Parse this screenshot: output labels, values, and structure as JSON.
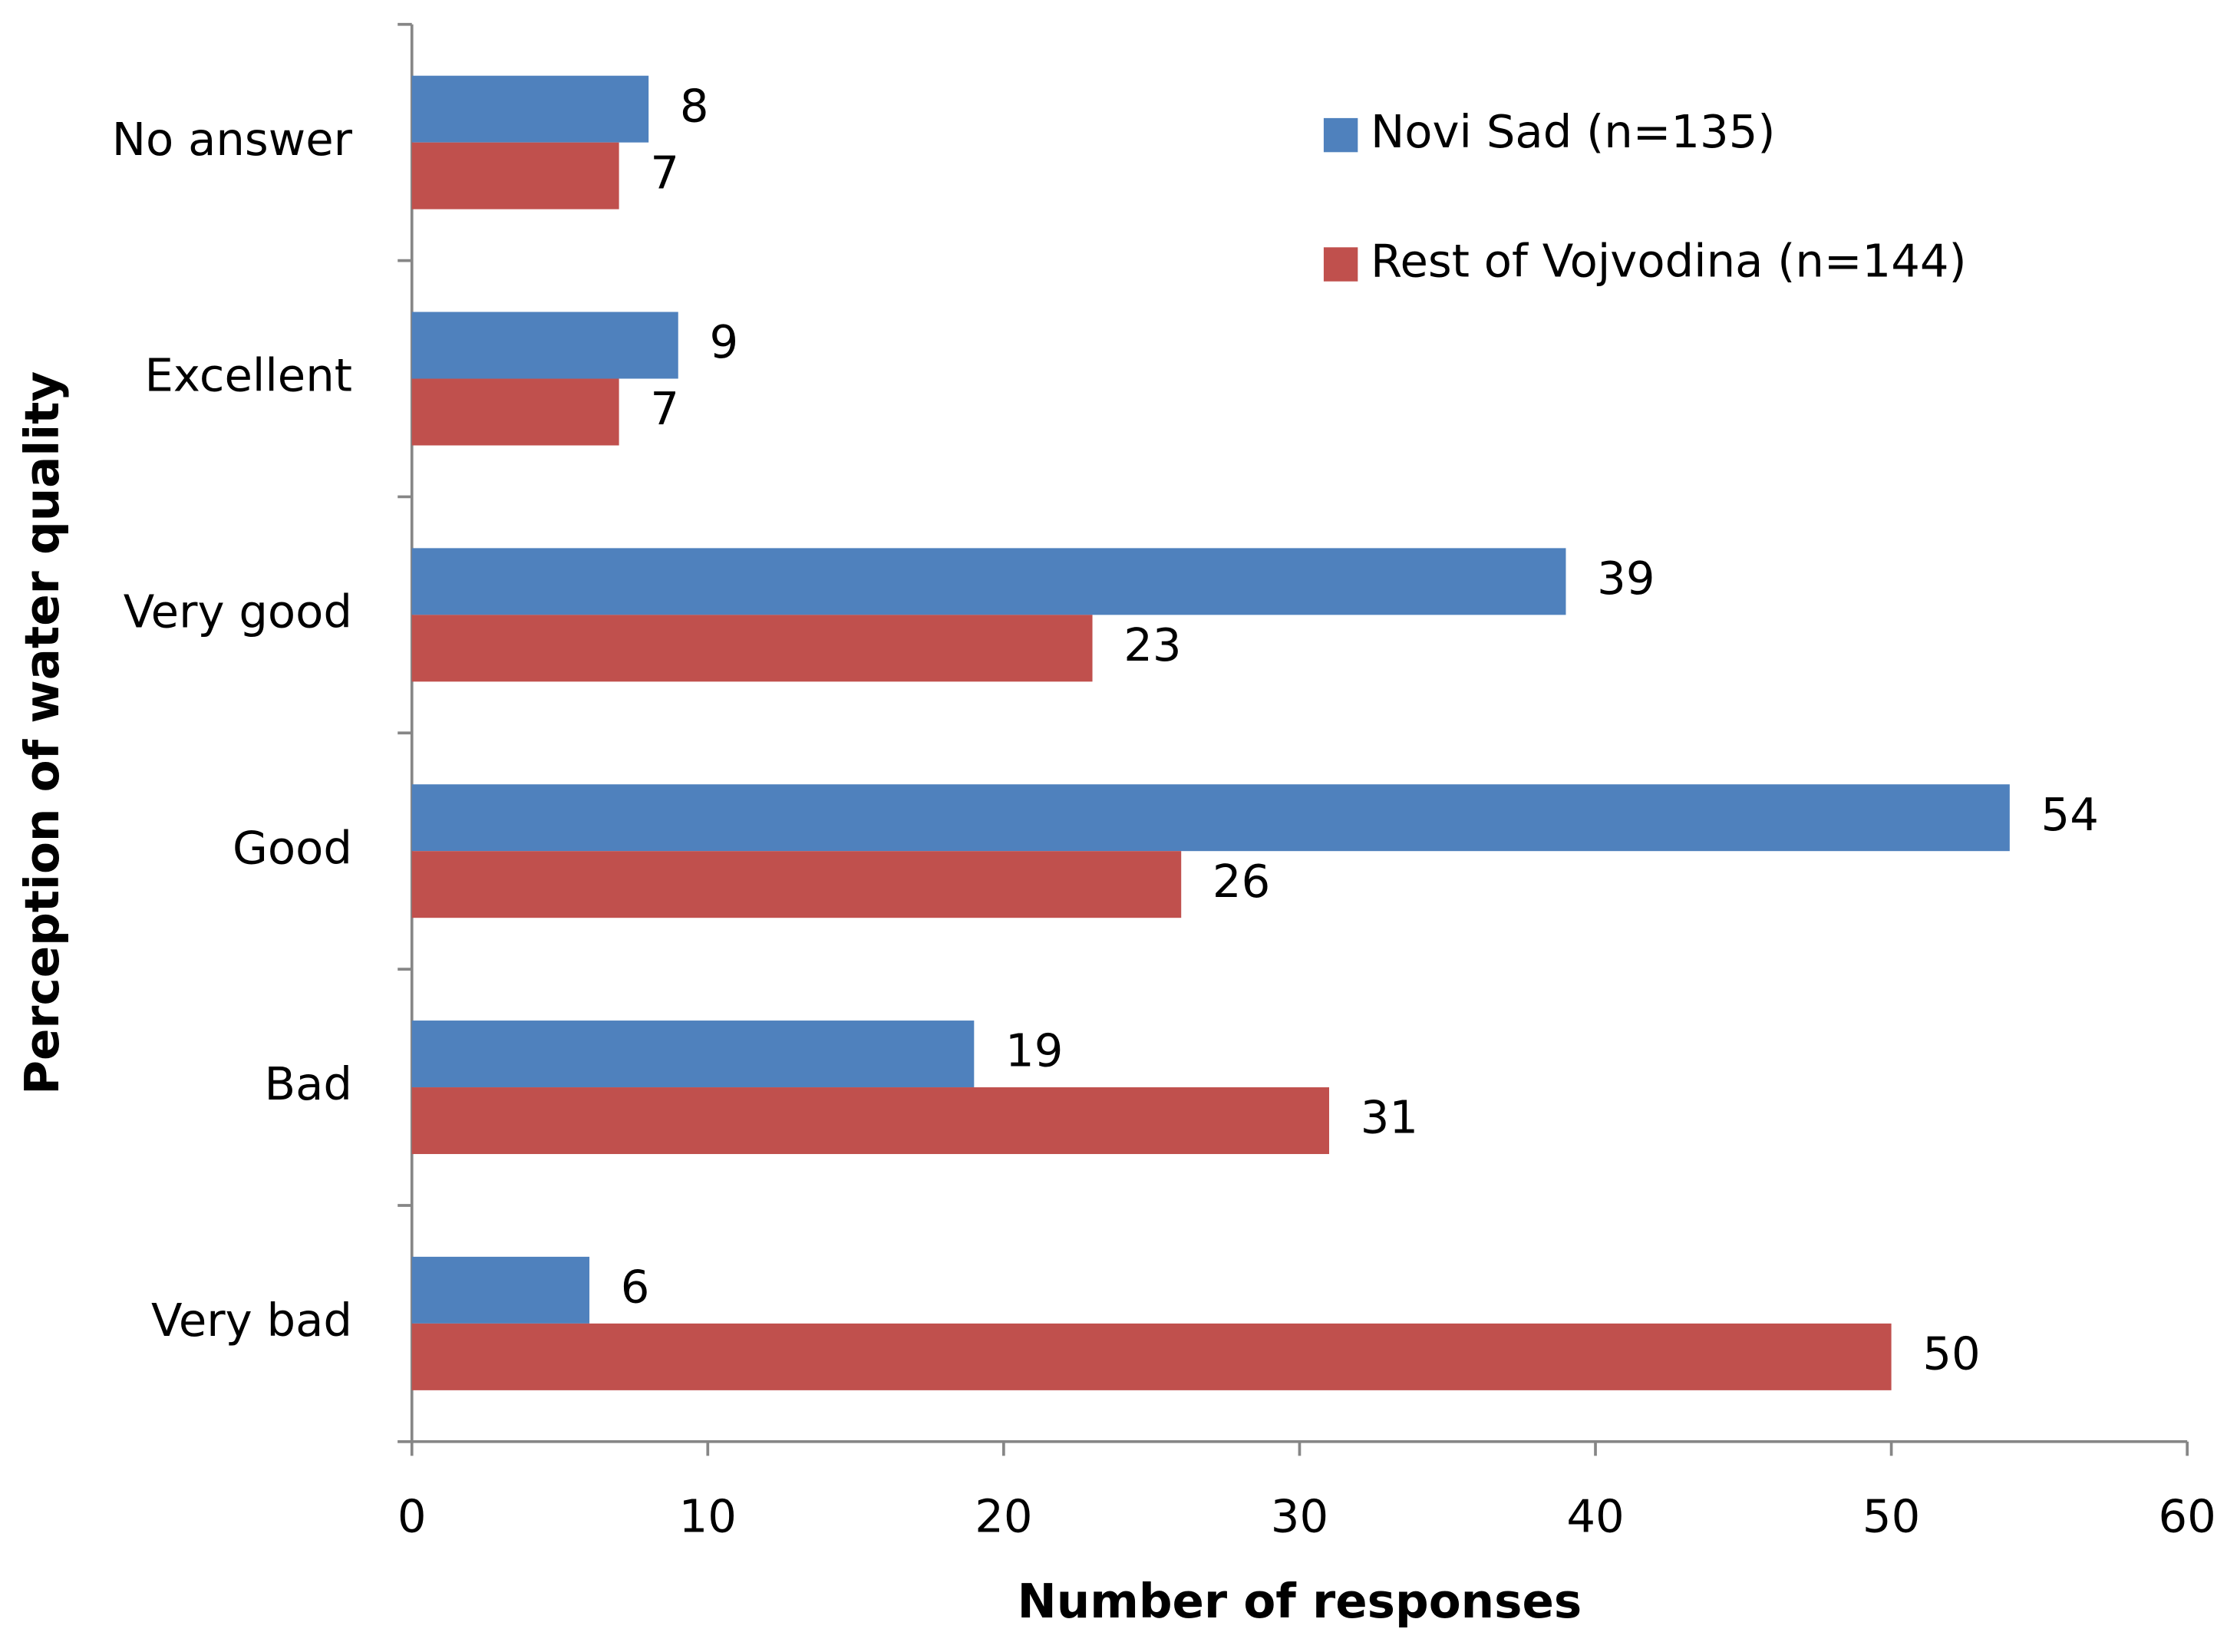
{
  "chart_data": {
    "type": "hbar",
    "x_label": "Number of responses",
    "y_label": "Perception of water quality",
    "categories": [
      "No answer",
      "Excellent",
      "Very good",
      "Good",
      "Bad",
      "Very bad"
    ],
    "series": [
      {
        "name": "Novi Sad (n=135)",
        "color": "#4f81bd",
        "values": [
          8,
          9,
          39,
          54,
          19,
          6
        ]
      },
      {
        "name": "Rest of Vojvodina (n=144)",
        "color": "#c0504d",
        "values": [
          7,
          7,
          23,
          26,
          31,
          50
        ]
      }
    ],
    "xlim": [
      0,
      60
    ],
    "xticks": [
      0,
      10,
      20,
      30,
      40,
      50,
      60
    ],
    "legend_position": "upper right"
  }
}
